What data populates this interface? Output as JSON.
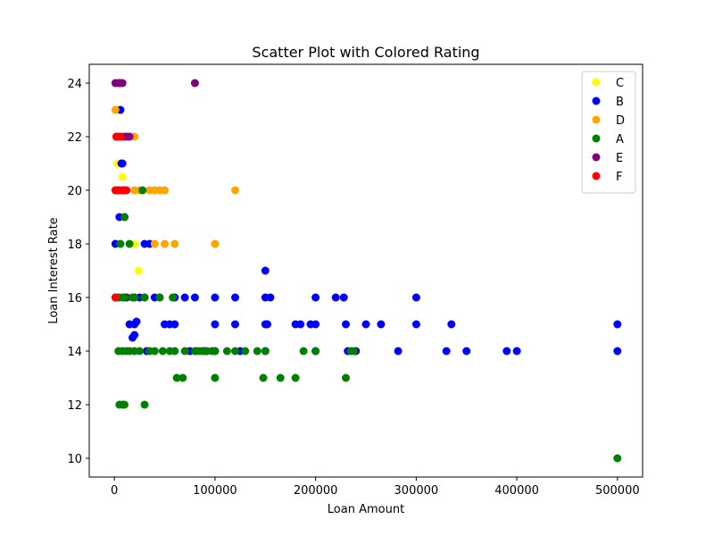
{
  "chart_data": {
    "type": "scatter",
    "title": "Scatter Plot with Colored Rating",
    "xlabel": "Loan Amount",
    "ylabel": "Loan Interest Rate",
    "xlim": [
      -25000,
      525000
    ],
    "ylim": [
      9.3,
      24.7
    ],
    "xticks": [
      0,
      100000,
      200000,
      300000,
      400000,
      500000
    ],
    "yticks": [
      10,
      12,
      14,
      16,
      18,
      20,
      22,
      24
    ],
    "grid": false,
    "legend_position": "top-right",
    "series": [
      {
        "name": "C",
        "color": "#ffff00",
        "points": [
          [
            1000,
            16
          ],
          [
            2000,
            16
          ],
          [
            3000,
            21
          ],
          [
            4000,
            23
          ],
          [
            8000,
            20.5
          ],
          [
            10000,
            20
          ],
          [
            12000,
            16
          ],
          [
            15000,
            16
          ],
          [
            20000,
            18
          ],
          [
            24000,
            17
          ],
          [
            30000,
            16
          ],
          [
            40000,
            20
          ]
        ]
      },
      {
        "name": "B",
        "color": "#0000ff",
        "points": [
          [
            1000,
            18
          ],
          [
            2000,
            16
          ],
          [
            3000,
            22
          ],
          [
            5000,
            19
          ],
          [
            6000,
            23
          ],
          [
            7000,
            21
          ],
          [
            8000,
            21
          ],
          [
            10000,
            19
          ],
          [
            12000,
            16
          ],
          [
            15000,
            15
          ],
          [
            18000,
            14.5
          ],
          [
            20000,
            15
          ],
          [
            20000,
            14.6
          ],
          [
            20000,
            16
          ],
          [
            22000,
            15.1
          ],
          [
            25000,
            16
          ],
          [
            30000,
            18
          ],
          [
            30000,
            16
          ],
          [
            32000,
            14
          ],
          [
            35000,
            18
          ],
          [
            40000,
            16
          ],
          [
            45000,
            16
          ],
          [
            50000,
            15
          ],
          [
            55000,
            15
          ],
          [
            60000,
            15
          ],
          [
            60000,
            16
          ],
          [
            70000,
            16
          ],
          [
            75000,
            14
          ],
          [
            80000,
            16
          ],
          [
            90000,
            14
          ],
          [
            100000,
            16
          ],
          [
            100000,
            15
          ],
          [
            100000,
            14
          ],
          [
            120000,
            16
          ],
          [
            120000,
            15
          ],
          [
            125000,
            14
          ],
          [
            150000,
            17
          ],
          [
            150000,
            16
          ],
          [
            150000,
            15
          ],
          [
            150000,
            14
          ],
          [
            152000,
            15
          ],
          [
            155000,
            16
          ],
          [
            180000,
            15
          ],
          [
            185000,
            15
          ],
          [
            195000,
            15
          ],
          [
            200000,
            16
          ],
          [
            200000,
            15
          ],
          [
            200000,
            14
          ],
          [
            220000,
            16
          ],
          [
            228000,
            16
          ],
          [
            230000,
            15
          ],
          [
            232000,
            14
          ],
          [
            240000,
            14
          ],
          [
            250000,
            15
          ],
          [
            265000,
            15
          ],
          [
            282000,
            14
          ],
          [
            300000,
            16
          ],
          [
            300000,
            15
          ],
          [
            330000,
            14
          ],
          [
            335000,
            15
          ],
          [
            350000,
            14
          ],
          [
            390000,
            14
          ],
          [
            400000,
            14
          ],
          [
            500000,
            15
          ],
          [
            500000,
            14
          ]
        ]
      },
      {
        "name": "D",
        "color": "#ffa500",
        "points": [
          [
            1000,
            23
          ],
          [
            2000,
            22
          ],
          [
            3000,
            20
          ],
          [
            8000,
            22
          ],
          [
            10000,
            20
          ],
          [
            15000,
            22
          ],
          [
            20000,
            22
          ],
          [
            20000,
            20
          ],
          [
            25000,
            20
          ],
          [
            35000,
            20
          ],
          [
            40000,
            20
          ],
          [
            40000,
            18
          ],
          [
            45000,
            20
          ],
          [
            50000,
            20
          ],
          [
            50000,
            18
          ],
          [
            60000,
            18
          ],
          [
            120000,
            20
          ],
          [
            100000,
            18
          ],
          [
            1000,
            16
          ],
          [
            5000,
            16
          ]
        ]
      },
      {
        "name": "A",
        "color": "#008000",
        "points": [
          [
            2000,
            16
          ],
          [
            4000,
            14
          ],
          [
            5000,
            12
          ],
          [
            5000,
            16
          ],
          [
            6000,
            18
          ],
          [
            8000,
            12
          ],
          [
            8000,
            14
          ],
          [
            9000,
            16
          ],
          [
            10000,
            19
          ],
          [
            10000,
            12
          ],
          [
            10000,
            16
          ],
          [
            12000,
            14
          ],
          [
            15000,
            18
          ],
          [
            15000,
            14
          ],
          [
            18000,
            16
          ],
          [
            20000,
            14
          ],
          [
            20000,
            16
          ],
          [
            25000,
            14
          ],
          [
            28000,
            20
          ],
          [
            30000,
            12
          ],
          [
            30000,
            16
          ],
          [
            35000,
            14
          ],
          [
            40000,
            14
          ],
          [
            45000,
            16
          ],
          [
            48000,
            14
          ],
          [
            55000,
            14
          ],
          [
            58000,
            16
          ],
          [
            60000,
            14
          ],
          [
            62000,
            13
          ],
          [
            68000,
            13
          ],
          [
            70000,
            14
          ],
          [
            80000,
            14
          ],
          [
            82000,
            14
          ],
          [
            85000,
            14
          ],
          [
            88000,
            14
          ],
          [
            92000,
            14
          ],
          [
            97000,
            14
          ],
          [
            100000,
            14
          ],
          [
            100000,
            13
          ],
          [
            112000,
            14
          ],
          [
            120000,
            14
          ],
          [
            130000,
            14
          ],
          [
            142000,
            14
          ],
          [
            148000,
            13
          ],
          [
            150000,
            14
          ],
          [
            165000,
            13
          ],
          [
            180000,
            13
          ],
          [
            188000,
            14
          ],
          [
            200000,
            14
          ],
          [
            230000,
            13
          ],
          [
            235000,
            14
          ],
          [
            238000,
            14
          ],
          [
            500000,
            10
          ]
        ]
      },
      {
        "name": "E",
        "color": "#800080",
        "points": [
          [
            1000,
            24
          ],
          [
            3000,
            22
          ],
          [
            4000,
            24
          ],
          [
            5000,
            24
          ],
          [
            6000,
            24
          ],
          [
            8000,
            24
          ],
          [
            10000,
            22
          ],
          [
            12000,
            22
          ],
          [
            15000,
            22
          ],
          [
            80000,
            24
          ]
        ]
      },
      {
        "name": "F",
        "color": "#ff0000",
        "points": [
          [
            1000,
            16
          ],
          [
            1000,
            20
          ],
          [
            2000,
            22
          ],
          [
            3000,
            20
          ],
          [
            5000,
            20
          ],
          [
            6000,
            22
          ],
          [
            8000,
            20
          ],
          [
            10000,
            20
          ],
          [
            12000,
            20
          ]
        ]
      }
    ]
  }
}
